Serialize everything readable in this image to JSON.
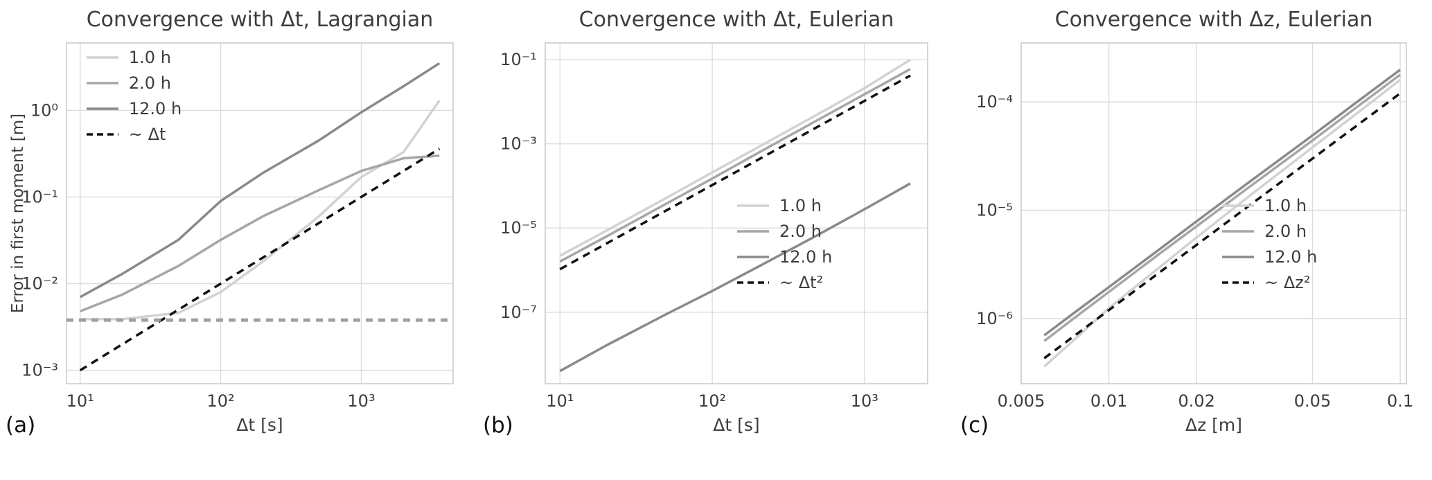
{
  "figure": {
    "background": "#ffffff",
    "panel_labels": [
      "(a)",
      "(b)",
      "(c)"
    ]
  },
  "colors": {
    "grid": "#dcdcdc",
    "spine": "#cccccc",
    "text": "#3d3d3d",
    "series_light": "#d2d2d2",
    "series_mid": "#a6a6a6",
    "series_dark": "#8a8a8a",
    "reference": "#111111",
    "noise_floor": "#a0a0a0"
  },
  "chart_data": [
    {
      "type": "line",
      "title": "Convergence with Δt, Lagrangian",
      "xlabel": "Δt [s]",
      "ylabel": "Error in first moment [m]",
      "panel_label": "(a)",
      "xscale": "log",
      "yscale": "log",
      "grid": true,
      "xlim": [
        8,
        4500
      ],
      "ylim": [
        0.0007,
        6
      ],
      "xticks": [
        {
          "v": 10,
          "label": "10¹"
        },
        {
          "v": 100,
          "label": "10²"
        },
        {
          "v": 1000,
          "label": "10³"
        }
      ],
      "yticks": [
        {
          "v": 0.001,
          "label": "10⁻³"
        },
        {
          "v": 0.01,
          "label": "10⁻²"
        },
        {
          "v": 0.1,
          "label": "10⁻¹"
        },
        {
          "v": 1,
          "label": "10⁰"
        }
      ],
      "legend": {
        "position": "upper-left",
        "x": 0.05,
        "y": 0.015
      },
      "series": [
        {
          "id": "1h",
          "name": "1.0 h",
          "color": "#d2d2d2",
          "dash": null,
          "in_legend": true,
          "x": [
            10,
            20,
            50,
            100,
            200,
            500,
            1000,
            2000,
            3600
          ],
          "y": [
            0.0039,
            0.0039,
            0.0046,
            0.008,
            0.018,
            0.06,
            0.17,
            0.33,
            1.3
          ]
        },
        {
          "id": "2h",
          "name": "2.0 h",
          "color": "#a6a6a6",
          "dash": null,
          "in_legend": true,
          "x": [
            10,
            20,
            50,
            100,
            200,
            500,
            1000,
            2000,
            3600
          ],
          "y": [
            0.0048,
            0.0075,
            0.016,
            0.032,
            0.06,
            0.12,
            0.2,
            0.28,
            0.3
          ]
        },
        {
          "id": "12h",
          "name": "12.0 h",
          "color": "#8a8a8a",
          "dash": null,
          "in_legend": true,
          "x": [
            10,
            20,
            50,
            100,
            200,
            500,
            1000,
            2000,
            3600
          ],
          "y": [
            0.007,
            0.013,
            0.032,
            0.09,
            0.19,
            0.45,
            0.95,
            1.9,
            3.5
          ]
        },
        {
          "id": "ref-dt",
          "name": "~ Δt",
          "color": "#111111",
          "dash": "11 8",
          "in_legend": true,
          "x": [
            10,
            3600
          ],
          "y": [
            0.001,
            0.36
          ]
        },
        {
          "id": "noise-floor",
          "name": "noise floor",
          "color": "#a0a0a0",
          "dash": "10 8",
          "width": 5,
          "in_legend": false,
          "x": [
            8,
            4500
          ],
          "y": [
            0.0038,
            0.0038
          ]
        }
      ]
    },
    {
      "type": "line",
      "title": "Convergence with Δt, Eulerian",
      "xlabel": "Δt [s]",
      "panel_label": "(b)",
      "xscale": "log",
      "yscale": "log",
      "grid": true,
      "xlim": [
        8,
        2600
      ],
      "ylim": [
        2e-09,
        0.25
      ],
      "xticks": [
        {
          "v": 10,
          "label": "10¹"
        },
        {
          "v": 100,
          "label": "10²"
        },
        {
          "v": 1000,
          "label": "10³"
        }
      ],
      "yticks": [
        {
          "v": 1e-07,
          "label": "10⁻⁷"
        },
        {
          "v": 1e-05,
          "label": "10⁻⁵"
        },
        {
          "v": 0.001,
          "label": "10⁻³"
        },
        {
          "v": 0.1,
          "label": "10⁻¹"
        }
      ],
      "legend": {
        "position": "center-right",
        "x": 0.5,
        "y": 0.45
      },
      "series": [
        {
          "id": "1h",
          "name": "1.0 h",
          "color": "#d2d2d2",
          "dash": null,
          "in_legend": true,
          "x": [
            10,
            20,
            50,
            100,
            200,
            500,
            1000,
            2000
          ],
          "y": [
            2.2e-06,
            8.5e-06,
            5.2e-05,
            0.00021,
            0.00083,
            0.0052,
            0.021,
            0.1
          ]
        },
        {
          "id": "2h",
          "name": "2.0 h",
          "color": "#a6a6a6",
          "dash": null,
          "in_legend": true,
          "x": [
            10,
            20,
            50,
            100,
            200,
            500,
            1000,
            2000
          ],
          "y": [
            1.6e-06,
            6.2e-06,
            3.8e-05,
            0.00015,
            0.00061,
            0.0038,
            0.015,
            0.06
          ]
        },
        {
          "id": "12h",
          "name": "12.0 h",
          "color": "#8a8a8a",
          "dash": null,
          "in_legend": true,
          "x": [
            10,
            20,
            50,
            100,
            200,
            500,
            1000,
            2000
          ],
          "y": [
            4e-09,
            1.6e-08,
            9e-08,
            3.2e-07,
            1.2e-06,
            7e-06,
            2.8e-05,
            0.000115
          ]
        },
        {
          "id": "ref-dt2",
          "name": "~ Δt²",
          "color": "#111111",
          "dash": "11 8",
          "in_legend": true,
          "x": [
            10,
            2000
          ],
          "y": [
            1.05e-06,
            0.042
          ]
        }
      ]
    },
    {
      "type": "line",
      "title": "Convergence with Δz, Eulerian",
      "xlabel": "Δz [m]",
      "panel_label": "(c)",
      "xscale": "log",
      "yscale": "log",
      "grid": true,
      "xlim": [
        0.005,
        0.105
      ],
      "ylim": [
        2.5e-07,
        0.00035
      ],
      "xticks": [
        {
          "v": 0.005,
          "label": "0.005"
        },
        {
          "v": 0.01,
          "label": "0.01"
        },
        {
          "v": 0.02,
          "label": "0.02"
        },
        {
          "v": 0.05,
          "label": "0.05"
        },
        {
          "v": 0.1,
          "label": "0.1"
        }
      ],
      "yticks": [
        {
          "v": 1e-06,
          "label": "10⁻⁶"
        },
        {
          "v": 1e-05,
          "label": "10⁻⁵"
        },
        {
          "v": 0.0001,
          "label": "10⁻⁴"
        }
      ],
      "legend": {
        "position": "center-right",
        "x": 0.52,
        "y": 0.45
      },
      "series": [
        {
          "id": "1h",
          "name": "1.0 h",
          "color": "#d2d2d2",
          "dash": null,
          "in_legend": true,
          "x": [
            0.006,
            0.008,
            0.01,
            0.015,
            0.02,
            0.03,
            0.05,
            0.07,
            0.1
          ],
          "y": [
            3.6e-07,
            7.2e-07,
            1.25e-06,
            3e-06,
            5.6e-06,
            1.32e-05,
            3.8e-05,
            7.6e-05,
            0.00016
          ]
        },
        {
          "id": "2h",
          "name": "2.0 h",
          "color": "#a6a6a6",
          "dash": null,
          "in_legend": true,
          "x": [
            0.006,
            0.008,
            0.01,
            0.015,
            0.02,
            0.03,
            0.05,
            0.07,
            0.1
          ],
          "y": [
            6.2e-07,
            1.12e-06,
            1.76e-06,
            4e-06,
            7.1e-06,
            1.6e-05,
            4.4e-05,
            8.7e-05,
            0.000178
          ]
        },
        {
          "id": "12h",
          "name": "12.0 h",
          "color": "#8a8a8a",
          "dash": null,
          "in_legend": true,
          "x": [
            0.006,
            0.008,
            0.01,
            0.015,
            0.02,
            0.03,
            0.05,
            0.07,
            0.1
          ],
          "y": [
            7e-07,
            1.25e-06,
            1.95e-06,
            4.4e-06,
            7.9e-06,
            1.78e-05,
            4.9e-05,
            9.7e-05,
            0.000198
          ]
        },
        {
          "id": "ref-dz2",
          "name": "~ Δz²",
          "color": "#111111",
          "dash": "11 8",
          "in_legend": true,
          "x": [
            0.006,
            0.1
          ],
          "y": [
            4.3e-07,
            0.00012
          ]
        }
      ]
    }
  ]
}
